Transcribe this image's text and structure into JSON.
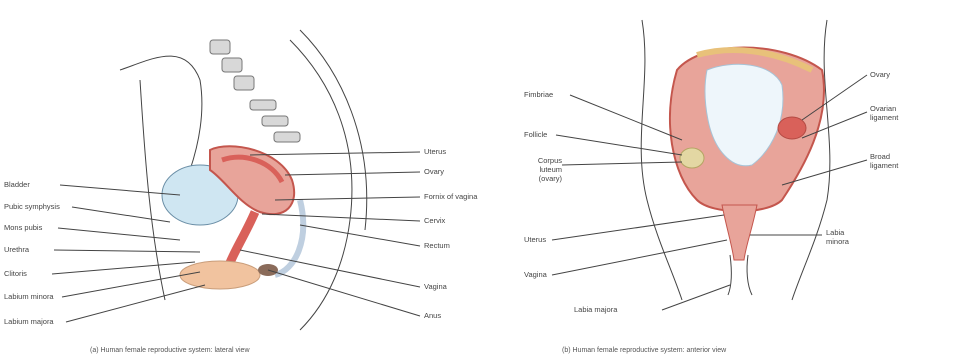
{
  "panel_a": {
    "caption": "(a) Human female reproductive system: lateral view",
    "labels_left": [
      "Bladder",
      "Pubic symphysis",
      "Mons pubis",
      "Urethra",
      "Clitoris",
      "Labium minora",
      "Labium majora"
    ],
    "labels_right": [
      "Uterus",
      "Ovary",
      "Fornix of vagina",
      "Cervix",
      "Rectum",
      "Vagina",
      "Anus"
    ]
  },
  "panel_b": {
    "caption": "(b) Human female reproductive system: anterior view",
    "labels_left": [
      "Fimbriae",
      "Follicle",
      "Corpus luteum (ovary)",
      "Uterus",
      "Vagina"
    ],
    "labels_right": [
      "Ovary",
      "Ovarian ligament",
      "Broad ligament",
      "Labia minora"
    ],
    "labels_bottom": [
      "Labia majora"
    ]
  },
  "colors": {
    "tissue_pink": "#e8a49a",
    "tissue_red": "#d9615a",
    "skin_peach": "#f1c39f",
    "outline": "#555555",
    "bladder_blue": "#cfe6f2"
  }
}
